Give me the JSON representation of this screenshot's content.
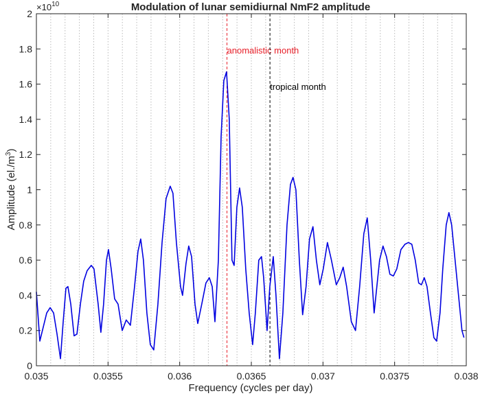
{
  "chart_data": {
    "type": "line",
    "title": "Modulation of lunar semidiurnal NmF2 amplitude",
    "xlabel": "Frequency (cycles per day)",
    "ylabel": "Amplitude (el./m",
    "ylabel_sup": "3",
    "ylabel_end": ")",
    "y_scale_base": "×10",
    "y_scale_exponent": "10",
    "xlim": [
      0.035,
      0.038
    ],
    "xticks": [
      0.035,
      0.0355,
      0.036,
      0.0365,
      0.037,
      0.0375,
      0.038
    ],
    "ylim": [
      0,
      2
    ],
    "yticks": [
      0,
      0.2,
      0.4,
      0.6,
      0.8,
      1,
      1.2,
      1.4,
      1.6,
      1.8,
      2
    ],
    "xgrid": [
      0.0351,
      0.0352,
      0.0353,
      0.0354,
      0.0355,
      0.0356,
      0.0357,
      0.0358,
      0.0359,
      0.036,
      0.0361,
      0.0362,
      0.0363,
      0.0364,
      0.0365,
      0.0366,
      0.0367,
      0.0368,
      0.0369,
      0.037,
      0.0371,
      0.0372,
      0.0373,
      0.0374,
      0.0375,
      0.0376,
      0.0377,
      0.0378,
      0.0379
    ],
    "annotations": [
      {
        "text": "anomalistic month",
        "x": 0.03633,
        "color": "#e8202a"
      },
      {
        "text": "tropical month",
        "x": 0.03663,
        "color": "#000000"
      }
    ],
    "series": [
      {
        "color": "#0000e0",
        "x": [
          0.035,
          0.035024,
          0.035048,
          0.035072,
          0.035096,
          0.03512,
          0.035144,
          0.035168,
          0.035187,
          0.035206,
          0.03522,
          0.03524,
          0.035263,
          0.035283,
          0.035307,
          0.03533,
          0.035354,
          0.035383,
          0.035402,
          0.035431,
          0.03545,
          0.035469,
          0.035489,
          0.035503,
          0.035522,
          0.035546,
          0.03557,
          0.035599,
          0.035627,
          0.035656,
          0.035685,
          0.035709,
          0.035728,
          0.035747,
          0.035771,
          0.035795,
          0.035819,
          0.035848,
          0.035877,
          0.035905,
          0.035934,
          0.035953,
          0.035977,
          0.036006,
          0.03602,
          0.036044,
          0.036063,
          0.036083,
          0.036107,
          0.036126,
          0.036154,
          0.036183,
          0.036207,
          0.036227,
          0.036246,
          0.03627,
          0.036289,
          0.036308,
          0.036327,
          0.036346,
          0.036365,
          0.03638,
          0.036399,
          0.036418,
          0.036437,
          0.036461,
          0.036485,
          0.036509,
          0.036528,
          0.036552,
          0.036571,
          0.036586,
          0.03661,
          0.036629,
          0.036653,
          0.036672,
          0.036696,
          0.03672,
          0.036749,
          0.036773,
          0.036791,
          0.036811,
          0.036835,
          0.036858,
          0.036882,
          0.036906,
          0.03693,
          0.036954,
          0.036978,
          0.037002,
          0.037031,
          0.037059,
          0.037093,
          0.037117,
          0.037141,
          0.037165,
          0.037198,
          0.037227,
          0.037256,
          0.037285,
          0.037309,
          0.037333,
          0.037357,
          0.037376,
          0.037395,
          0.037419,
          0.037443,
          0.037467,
          0.037491,
          0.037515,
          0.037544,
          0.037572,
          0.037596,
          0.03762,
          0.037644,
          0.037668,
          0.037687,
          0.037707,
          0.037726,
          0.03775,
          0.037774,
          0.037793,
          0.037817,
          0.037836,
          0.03786,
          0.037879,
          0.037898,
          0.037922,
          0.037946,
          0.03797,
          0.037984
        ],
        "values": [
          0.42,
          0.14,
          0.22,
          0.3,
          0.33,
          0.3,
          0.18,
          0.04,
          0.25,
          0.44,
          0.45,
          0.35,
          0.17,
          0.18,
          0.35,
          0.48,
          0.54,
          0.57,
          0.55,
          0.35,
          0.19,
          0.35,
          0.6,
          0.66,
          0.55,
          0.38,
          0.35,
          0.2,
          0.26,
          0.23,
          0.45,
          0.65,
          0.72,
          0.6,
          0.3,
          0.12,
          0.09,
          0.35,
          0.7,
          0.95,
          1.02,
          0.98,
          0.7,
          0.45,
          0.4,
          0.58,
          0.68,
          0.62,
          0.35,
          0.24,
          0.35,
          0.47,
          0.5,
          0.45,
          0.25,
          0.6,
          1.3,
          1.62,
          1.67,
          1.4,
          0.6,
          0.57,
          0.9,
          1.01,
          0.9,
          0.55,
          0.3,
          0.12,
          0.3,
          0.6,
          0.62,
          0.5,
          0.2,
          0.45,
          0.62,
          0.4,
          0.04,
          0.3,
          0.8,
          1.03,
          1.07,
          1.0,
          0.6,
          0.29,
          0.45,
          0.72,
          0.79,
          0.6,
          0.46,
          0.55,
          0.7,
          0.6,
          0.46,
          0.5,
          0.56,
          0.45,
          0.25,
          0.2,
          0.45,
          0.75,
          0.84,
          0.6,
          0.3,
          0.45,
          0.6,
          0.68,
          0.62,
          0.52,
          0.51,
          0.55,
          0.66,
          0.69,
          0.7,
          0.69,
          0.6,
          0.47,
          0.46,
          0.5,
          0.45,
          0.3,
          0.16,
          0.14,
          0.3,
          0.55,
          0.8,
          0.87,
          0.8,
          0.6,
          0.4,
          0.2,
          0.16
        ]
      }
    ]
  }
}
